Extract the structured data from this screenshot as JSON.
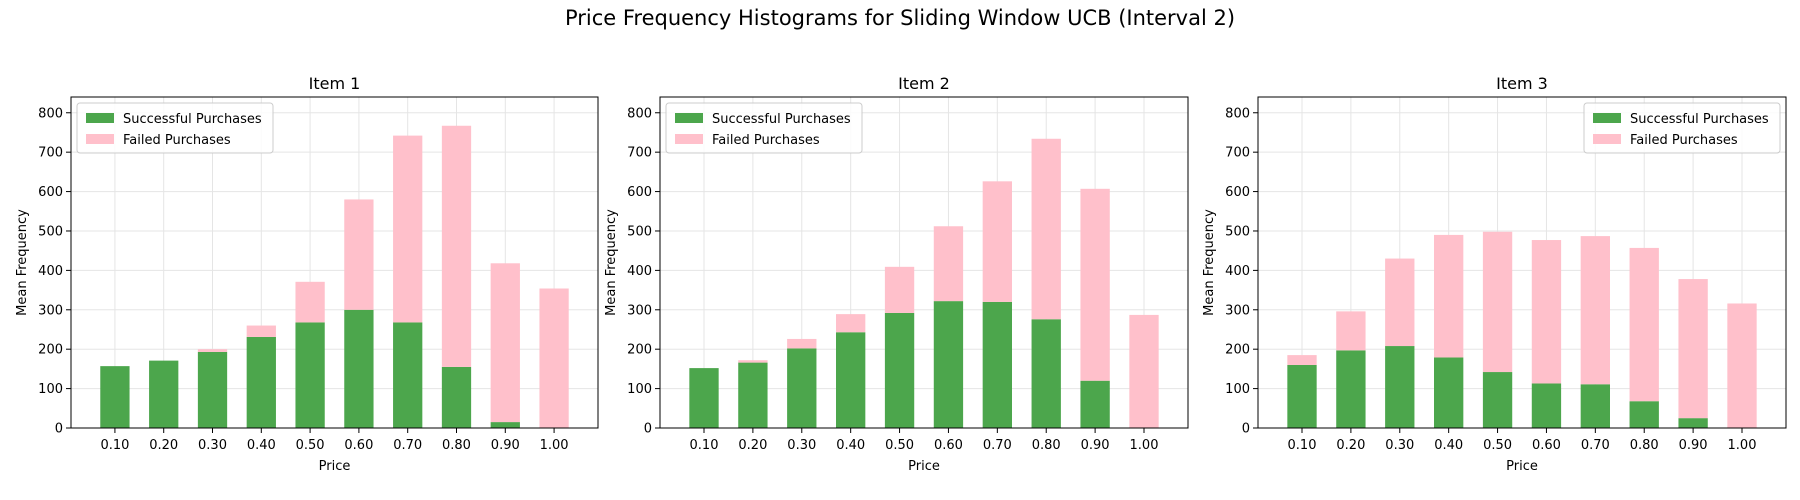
{
  "figure": {
    "title": "Price Frequency Histograms for Sliding Window UCB (Interval 2)"
  },
  "colors": {
    "success": "#4ca64c",
    "failed": "#ffc0cb",
    "grid": "#e5e5e5",
    "axis": "#000000"
  },
  "chart_data": [
    {
      "type": "bar",
      "stacked": true,
      "title": "Item 1",
      "xlabel": "Price",
      "ylabel": "Mean Frequency",
      "categories": [
        "0.10",
        "0.20",
        "0.30",
        "0.40",
        "0.50",
        "0.60",
        "0.70",
        "0.80",
        "0.90",
        "1.00"
      ],
      "ylim": [
        0,
        840
      ],
      "yticks": [
        0,
        100,
        200,
        300,
        400,
        500,
        600,
        700,
        800
      ],
      "grid": true,
      "legend_position": "top-left",
      "series": [
        {
          "name": "Successful Purchases",
          "values": [
            157,
            171,
            193,
            231,
            268,
            300,
            268,
            155,
            15,
            0
          ]
        },
        {
          "name": "Failed Purchases",
          "values": [
            0,
            0,
            7,
            29,
            103,
            280,
            474,
            612,
            403,
            354
          ]
        }
      ]
    },
    {
      "type": "bar",
      "stacked": true,
      "title": "Item 2",
      "xlabel": "Price",
      "ylabel": "Mean Frequency",
      "categories": [
        "0.10",
        "0.20",
        "0.30",
        "0.40",
        "0.50",
        "0.60",
        "0.70",
        "0.80",
        "0.90",
        "1.00"
      ],
      "ylim": [
        0,
        840
      ],
      "yticks": [
        0,
        100,
        200,
        300,
        400,
        500,
        600,
        700,
        800
      ],
      "grid": true,
      "legend_position": "top-left",
      "series": [
        {
          "name": "Successful Purchases",
          "values": [
            152,
            166,
            202,
            243,
            292,
            322,
            320,
            276,
            120,
            0
          ]
        },
        {
          "name": "Failed Purchases",
          "values": [
            0,
            6,
            24,
            46,
            117,
            190,
            306,
            458,
            487,
            287
          ]
        }
      ]
    },
    {
      "type": "bar",
      "stacked": true,
      "title": "Item 3",
      "xlabel": "Price",
      "ylabel": "Mean Frequency",
      "categories": [
        "0.10",
        "0.20",
        "0.30",
        "0.40",
        "0.50",
        "0.60",
        "0.70",
        "0.80",
        "0.90",
        "1.00"
      ],
      "ylim": [
        0,
        840
      ],
      "yticks": [
        0,
        100,
        200,
        300,
        400,
        500,
        600,
        700,
        800
      ],
      "grid": true,
      "legend_position": "top-right",
      "series": [
        {
          "name": "Successful Purchases",
          "values": [
            160,
            197,
            208,
            179,
            142,
            113,
            111,
            68,
            25,
            0
          ]
        },
        {
          "name": "Failed Purchases",
          "values": [
            25,
            99,
            222,
            311,
            356,
            364,
            376,
            389,
            353,
            316
          ]
        }
      ]
    }
  ]
}
